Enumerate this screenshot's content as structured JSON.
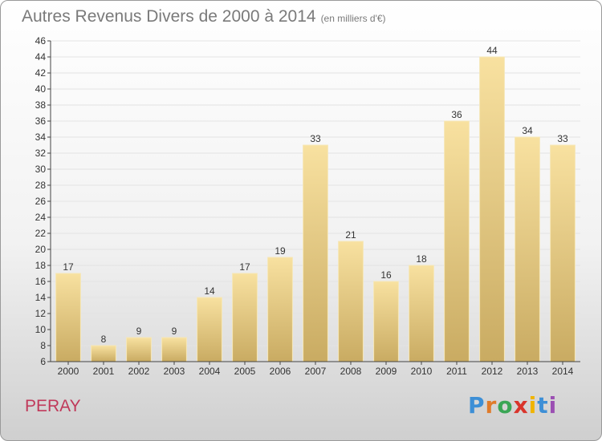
{
  "header": {
    "title": "Autres Revenus Divers de 2000 à 2014",
    "unit": "(en milliers d'€)"
  },
  "footer": {
    "commune": "PERAY",
    "logo_letters": [
      "P",
      "r",
      "o",
      "x",
      "i",
      "t",
      "i"
    ],
    "logo_colors": [
      "#3d8fd6",
      "#e07b2a",
      "#3aa655",
      "#d9342b",
      "#f0b400",
      "#3d8fd6",
      "#9b4fb3"
    ]
  },
  "colors": {
    "bar_top": "#f8e1a0",
    "bar_bottom": "#c9ab62",
    "bar_edge": "#f6e7b6",
    "grid": "#e3e3e3",
    "axis": "#444444",
    "text": "#333333"
  },
  "chart_data": {
    "type": "bar",
    "title": "Autres Revenus Divers de 2000 à 2014",
    "categories": [
      "2000",
      "2001",
      "2002",
      "2003",
      "2004",
      "2005",
      "2006",
      "2007",
      "2008",
      "2009",
      "2010",
      "2011",
      "2012",
      "2013",
      "2014"
    ],
    "values": [
      17,
      8,
      9,
      9,
      14,
      17,
      19,
      33,
      21,
      16,
      18,
      36,
      44,
      34,
      33
    ],
    "ylim": [
      6,
      46
    ],
    "ytick_step": 2,
    "grid": true,
    "data_labels": true
  }
}
